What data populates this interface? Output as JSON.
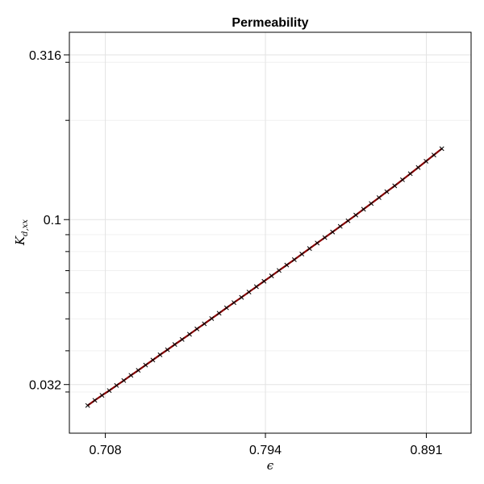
{
  "chart_data": {
    "type": "scatter",
    "title": "Permeability",
    "xlabel": "ϵ",
    "ylabel": "K",
    "ylabel_subscript": "d,xx",
    "x_scale": "log",
    "y_scale": "log",
    "xlim": [
      0.69,
      0.92
    ],
    "ylim": [
      0.0225,
      0.37
    ],
    "x_ticks": [
      {
        "value": 0.708,
        "label": "0.708"
      },
      {
        "value": 0.794,
        "label": "0.794"
      },
      {
        "value": 0.891,
        "label": "0.891"
      }
    ],
    "y_ticks": [
      {
        "value": 0.0316,
        "label": "0.032"
      },
      {
        "value": 0.1,
        "label": "0.1"
      },
      {
        "value": 0.316,
        "label": "0.316"
      }
    ],
    "grid": true,
    "curve_color": "#8b0000",
    "marker_color": "#000000",
    "marker": "x",
    "series": [
      {
        "x": [
          0.6991,
          0.7027,
          0.7063,
          0.71,
          0.7137,
          0.7174,
          0.7211,
          0.7249,
          0.7287,
          0.7325,
          0.7363,
          0.7402,
          0.7441,
          0.748,
          0.752,
          0.756,
          0.76,
          0.764,
          0.7681,
          0.7722,
          0.7763,
          0.7805,
          0.7847,
          0.7889,
          0.7932,
          0.7975,
          0.8018,
          0.8062,
          0.8106,
          0.815,
          0.8195,
          0.824,
          0.8285,
          0.8331,
          0.8377,
          0.8424,
          0.8471,
          0.8518,
          0.8565,
          0.8613,
          0.8661,
          0.871,
          0.8759,
          0.8808,
          0.8858,
          0.8908,
          0.8958,
          0.9009
        ],
        "y": [
          0.0273,
          0.0283,
          0.0293,
          0.0303,
          0.0314,
          0.0325,
          0.0337,
          0.0349,
          0.0362,
          0.0375,
          0.0389,
          0.0403,
          0.0418,
          0.0433,
          0.0449,
          0.0466,
          0.0483,
          0.0501,
          0.052,
          0.054,
          0.056,
          0.0581,
          0.0603,
          0.0626,
          0.065,
          0.0675,
          0.0701,
          0.0728,
          0.0756,
          0.0786,
          0.0817,
          0.0849,
          0.0882,
          0.0917,
          0.0954,
          0.0992,
          0.1032,
          0.1075,
          0.1119,
          0.1166,
          0.1215,
          0.1266,
          0.1321,
          0.1378,
          0.1439,
          0.1503,
          0.157,
          0.1641
        ]
      }
    ]
  }
}
